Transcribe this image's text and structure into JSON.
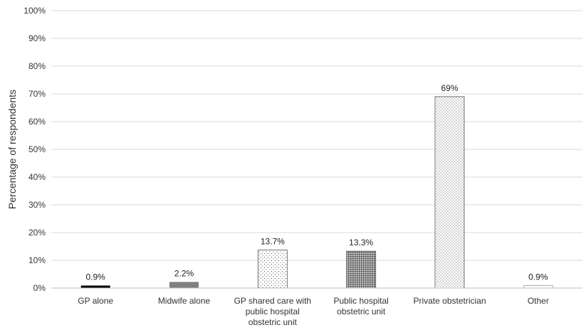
{
  "chart_data": {
    "type": "bar",
    "title": "",
    "xlabel": "",
    "ylabel": "Percentage of respondents",
    "ylim": [
      0,
      100
    ],
    "y_ticks": [
      "0%",
      "10%",
      "20%",
      "30%",
      "40%",
      "50%",
      "60%",
      "70%",
      "80%",
      "90%",
      "100%"
    ],
    "grid": true,
    "legend": "none",
    "categories": [
      [
        "GP alone"
      ],
      [
        "Midwife alone"
      ],
      [
        "GP shared care with",
        "public hospital",
        "obstetric unit"
      ],
      [
        "Public hospital",
        "obstetric unit"
      ],
      [
        "Private obstetrician"
      ],
      [
        "Other"
      ]
    ],
    "values": [
      0.9,
      2.2,
      13.7,
      13.3,
      69,
      0.9
    ],
    "data_labels": [
      "0.9%",
      "2.2%",
      "13.7%",
      "13.3%",
      "69%",
      "0.9%"
    ],
    "bar_styles": [
      "solid-black",
      "solid-gray",
      "sparse-dots",
      "dense-dots",
      "fine-dots",
      "faint-dots"
    ],
    "colors": {
      "grid": "#d9d9d9",
      "axis": "#bfbfbf",
      "bar_dark": "#000000",
      "bar_gray": "#7f7f7f",
      "outline": "#555555"
    }
  }
}
